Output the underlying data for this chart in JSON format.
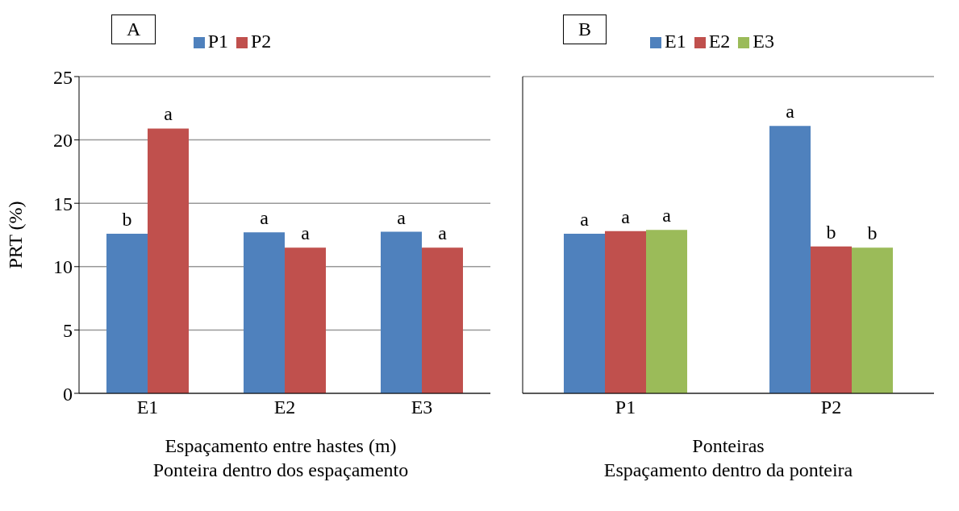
{
  "chart_data": [
    {
      "type": "bar",
      "title": "A",
      "categories": [
        "E1",
        "E2",
        "E3"
      ],
      "xlabel": "Espaçamento entre hastes (m)\nPonteira dentro dos espaçamento",
      "ylabel": "PRT (%)",
      "ylim": [
        0,
        25
      ],
      "yticks": [
        0,
        5,
        10,
        15,
        20,
        25
      ],
      "grid": "y",
      "legend": "top",
      "series": [
        {
          "name": "P1",
          "color": "#4f81bd",
          "values": [
            12.6,
            12.7,
            12.75
          ],
          "value_labels": [
            "b",
            "a",
            "a"
          ]
        },
        {
          "name": "P2",
          "color": "#c0504d",
          "values": [
            20.9,
            11.5,
            11.5
          ],
          "value_labels": [
            "a",
            "a",
            "a"
          ]
        }
      ]
    },
    {
      "type": "bar",
      "title": "B",
      "categories": [
        "P1",
        "P2"
      ],
      "xlabel": "Ponteiras\nEspaçamento dentro da ponteira",
      "ylim": [
        0,
        25
      ],
      "yticks": [
        0,
        5,
        10,
        15,
        20,
        25
      ],
      "tick_labels": "x",
      "grid": "y",
      "legend": "top",
      "series": [
        {
          "name": "E1",
          "color": "#4f81bd",
          "values": [
            12.6,
            21.1
          ],
          "value_labels": [
            "a",
            "a"
          ]
        },
        {
          "name": "E2",
          "color": "#c0504d",
          "values": [
            12.8,
            11.6
          ],
          "value_labels": [
            "a",
            "b"
          ]
        },
        {
          "name": "E3",
          "color": "#9bbb59",
          "values": [
            12.9,
            11.5
          ],
          "value_labels": [
            "a",
            "b"
          ]
        }
      ]
    }
  ]
}
